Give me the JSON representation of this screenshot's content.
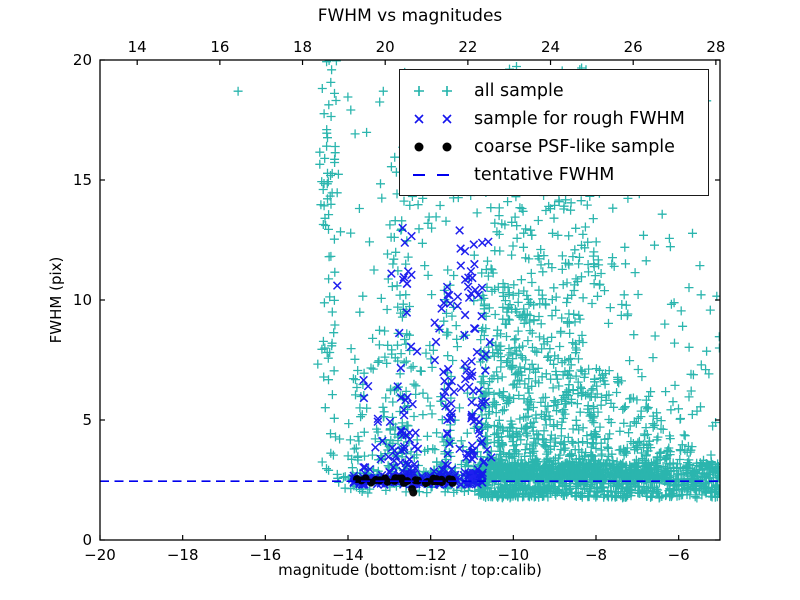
{
  "chart_data": {
    "type": "scatter",
    "title": "FWHM vs magnitudes",
    "xlabel": "magnitude (bottom:isnt / top:calib)",
    "ylabel": "FWHM (pix)",
    "x_bottom": {
      "min": -20,
      "max": -5,
      "tick_values": [
        -20,
        -18,
        -16,
        -14,
        -12,
        -10,
        -8,
        -6
      ],
      "tick_labels": [
        "−20",
        "−18",
        "−16",
        "−14",
        "−12",
        "−10",
        "−8",
        "−6"
      ]
    },
    "x_top": {
      "offset_from_bottom": 33.1,
      "tick_values": [
        14,
        16,
        18,
        20,
        22,
        24,
        26,
        28
      ],
      "tick_labels": [
        "14",
        "16",
        "18",
        "20",
        "22",
        "24",
        "26",
        "28"
      ]
    },
    "y": {
      "min": 0,
      "max": 20,
      "tick_values": [
        0,
        5,
        10,
        15,
        20
      ],
      "tick_labels": [
        "0",
        "5",
        "10",
        "15",
        "20"
      ]
    },
    "grid": false,
    "legend_position": "upper-center-right",
    "tentative_fwhm": 2.45,
    "colors": {
      "all_sample": "#20B2AA",
      "rough_sample": "#1414EE",
      "psf_sample": "#000000",
      "tentative_line": "#0000EE"
    },
    "seed": 42,
    "series": [
      {
        "name": "all sample",
        "marker": "plus",
        "color": "all_sample",
        "clusters": [
          {
            "n": 1000,
            "x": [
              -10.85,
              -4.95
            ],
            "kx": 1.15,
            "y": [
              1.75,
              3.2
            ],
            "ky": 1
          },
          {
            "n": 780,
            "x": [
              -10.8,
              -6.2
            ],
            "kx": 1.35,
            "y": [
              2.6,
              12
            ],
            "ky": 2.6,
            "y_end": 5
          },
          {
            "n": 430,
            "centers": [
              -10.35,
              -9.95,
              -9.55,
              -9.15,
              -8.75,
              -8.4,
              -8.05
            ],
            "sd": 0.12,
            "y": [
              2.6,
              19.8
            ],
            "ky": 2.3
          },
          {
            "n": 150,
            "x": [
              -10.7,
              -7.2
            ],
            "kx": 1,
            "y": [
              9,
              19.9
            ],
            "ky": 1.3
          },
          {
            "n": 90,
            "x": [
              -7.2,
              -5.0
            ],
            "kx": 1,
            "y": [
              3.2,
              13
            ],
            "ky": 2.0
          },
          {
            "n": 22,
            "x": [
              -8.0,
              -5.0
            ],
            "kx": 1,
            "y": [
              13,
              19
            ],
            "ky": 1
          },
          {
            "n": 90,
            "x": [
              -14.3,
              -10.85
            ],
            "kx": 1,
            "y": [
              1.95,
              2.75
            ],
            "ky": 1
          },
          {
            "n": 170,
            "x": [
              -14.0,
              -10.85
            ],
            "kx": 1,
            "y": [
              2.7,
              7.5
            ],
            "ky": 1.9
          },
          {
            "n": 150,
            "centers": [
              -14.45,
              -12.9,
              -12.65,
              -11.55
            ],
            "sd": 0.1,
            "y": [
              2.8,
              14.5
            ],
            "ky": 1.7
          },
          {
            "n": 40,
            "centers": [
              -14.5
            ],
            "sd": 0.12,
            "y": [
              11.5,
              20
            ],
            "ky": 0.85
          },
          {
            "n": 80,
            "x": [
              -14.05,
              -10.85
            ],
            "kx": 1,
            "y": [
              7.5,
              19.5
            ],
            "ky": 1.25
          },
          {
            "points": [
              [
                -16.66,
                18.7
              ]
            ]
          }
        ]
      },
      {
        "name": "sample for rough FWHM",
        "marker": "x",
        "color": "rough_sample",
        "clusters": [
          {
            "n": 140,
            "x": [
              -13.9,
              -10.7
            ],
            "kx": 1,
            "y": [
              2.3,
              2.68
            ],
            "ky": 1
          },
          {
            "n": 170,
            "centers": [
              -12.55,
              -11.6,
              -11.05,
              -10.82
            ],
            "sd": 0.13,
            "y": [
              2.7,
              13
            ],
            "ky": 2.1
          },
          {
            "n": 30,
            "x": [
              -13.65,
              -12.6
            ],
            "kx": 1,
            "y": [
              2.7,
              7.2
            ],
            "ky": 2.0
          },
          {
            "points": [
              [
                -14.26,
                10.6
              ],
              [
                -12.95,
                11.1
              ],
              [
                -11.3,
                12.9
              ]
            ]
          }
        ]
      },
      {
        "name": "coarse PSF-like sample",
        "marker": "dot",
        "color": "psf_sample",
        "clusters": [
          {
            "n": 30,
            "x": [
              -13.82,
              -11.3
            ],
            "kx": 1,
            "y": [
              2.36,
              2.58
            ],
            "ky": 1
          },
          {
            "points": [
              [
                -12.45,
                2.12
              ],
              [
                -12.42,
                1.98
              ]
            ]
          }
        ]
      }
    ],
    "line_series": [
      {
        "name": "tentative FWHM",
        "style": "dashed",
        "color": "tentative_line",
        "y": 2.45
      }
    ]
  },
  "legend": {
    "items": [
      {
        "label": "all sample",
        "marker": "plus",
        "color": "#20B2AA"
      },
      {
        "label": "sample for rough FWHM",
        "marker": "x",
        "color": "#1414EE"
      },
      {
        "label": "coarse PSF-like sample",
        "marker": "dot",
        "color": "#000000"
      },
      {
        "label": "tentative FWHM",
        "marker": "dash",
        "color": "#0000EE"
      }
    ]
  }
}
